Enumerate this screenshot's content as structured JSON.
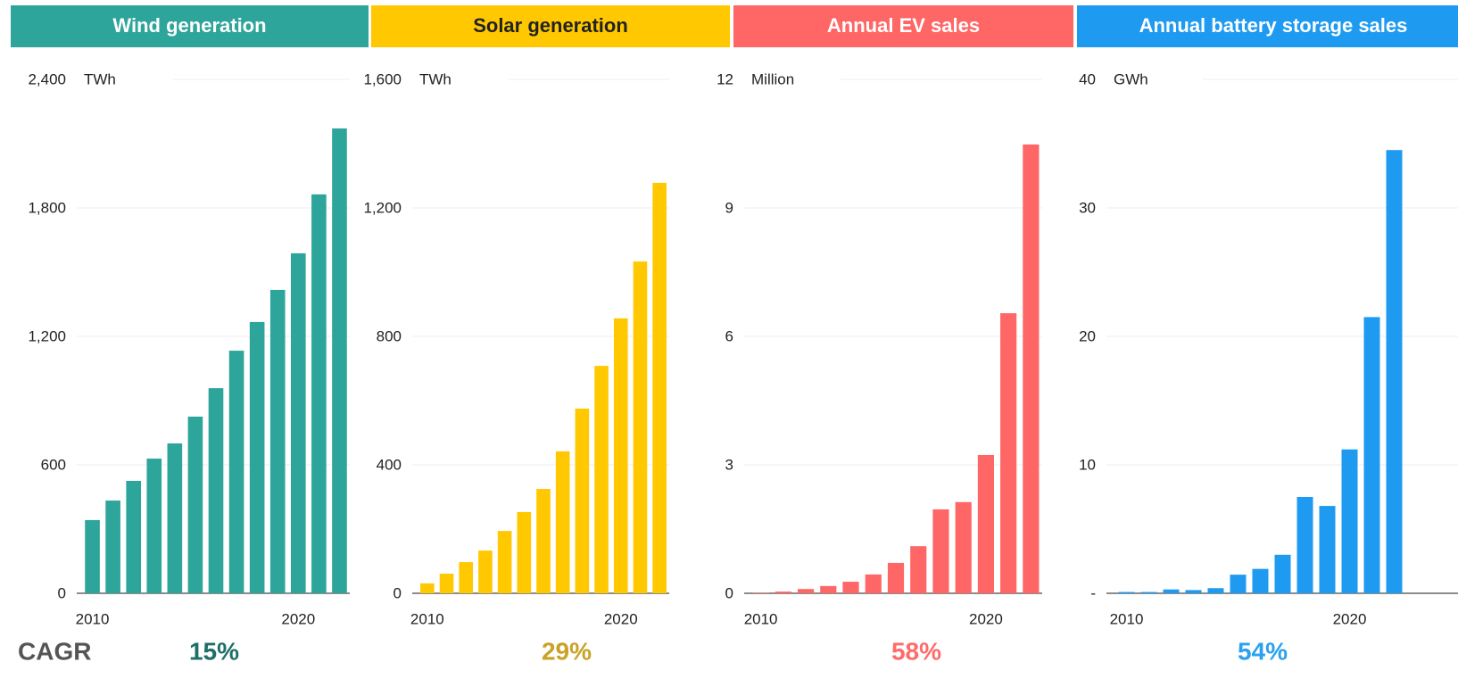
{
  "cagr_label": "CAGR",
  "chart_data": [
    {
      "type": "bar",
      "title": "Wind generation",
      "title_color": "#ffffff",
      "unit": "TWh",
      "color": "#2ea59a",
      "cagr": "15%",
      "cagr_color": "#1d6f67",
      "categories": [
        "2010",
        null,
        null,
        null,
        null,
        null,
        null,
        null,
        null,
        null,
        "2020",
        null,
        null
      ],
      "values": [
        342,
        433,
        525,
        629,
        700,
        825,
        958,
        1133,
        1267,
        1417,
        1588,
        1863,
        2171
      ],
      "ylim": [
        0,
        2400
      ],
      "yticks": [
        0,
        {
          "value": 600,
          "label": "600"
        },
        {
          "value": 1200,
          "label": "1,200"
        },
        {
          "value": 1800,
          "label": "1,800"
        },
        {
          "value": 2400,
          "label": "2,400"
        }
      ],
      "grid": true
    },
    {
      "type": "bar",
      "title": "Solar generation",
      "title_color": "#222222",
      "unit": "TWh",
      "color": "#ffc800",
      "cagr": "29%",
      "cagr_color": "#c9a227",
      "categories": [
        "2010",
        null,
        null,
        null,
        null,
        null,
        null,
        null,
        null,
        null,
        "2020",
        null,
        null
      ],
      "values": [
        31,
        61,
        97,
        133,
        194,
        253,
        325,
        442,
        575,
        708,
        856,
        1033,
        1278
      ],
      "ylim": [
        0,
        1600
      ],
      "yticks": [
        0,
        400,
        800,
        {
          "value": 1200,
          "label": "1,200"
        },
        {
          "value": 1600,
          "label": "1,600"
        }
      ],
      "grid": true
    },
    {
      "type": "bar",
      "title": "Annual EV sales",
      "title_color": "#ffffff",
      "unit": "Million",
      "color": "#ff6666",
      "cagr": "58%",
      "cagr_color": "#ff6b6b",
      "categories": [
        "2010",
        null,
        null,
        null,
        null,
        null,
        null,
        null,
        null,
        null,
        "2020",
        null,
        null
      ],
      "values": [
        0.01,
        0.04,
        0.1,
        0.17,
        0.27,
        0.44,
        0.71,
        1.1,
        1.96,
        2.13,
        3.23,
        6.54,
        10.48
      ],
      "ylim": [
        0,
        12
      ],
      "yticks": [
        0,
        3,
        6,
        9,
        12
      ],
      "grid": true
    },
    {
      "type": "bar",
      "title": "Annual battery storage sales",
      "title_color": "#ffffff",
      "unit": "GWh",
      "color": "#1e9bf0",
      "cagr": "54%",
      "cagr_color": "#2ba0f0",
      "categories": [
        "2010",
        null,
        null,
        null,
        null,
        null,
        null,
        null,
        null,
        null,
        "2020",
        null,
        null
      ],
      "values": [
        0.1,
        0.1,
        0.3,
        0.25,
        0.4,
        1.45,
        1.9,
        3.0,
        7.5,
        6.8,
        11.2,
        21.5,
        34.5
      ],
      "ylim": [
        0,
        40
      ],
      "yticks": [
        {
          "value": 0,
          "label": "-"
        },
        10,
        20,
        30,
        40
      ],
      "grid": true
    }
  ]
}
